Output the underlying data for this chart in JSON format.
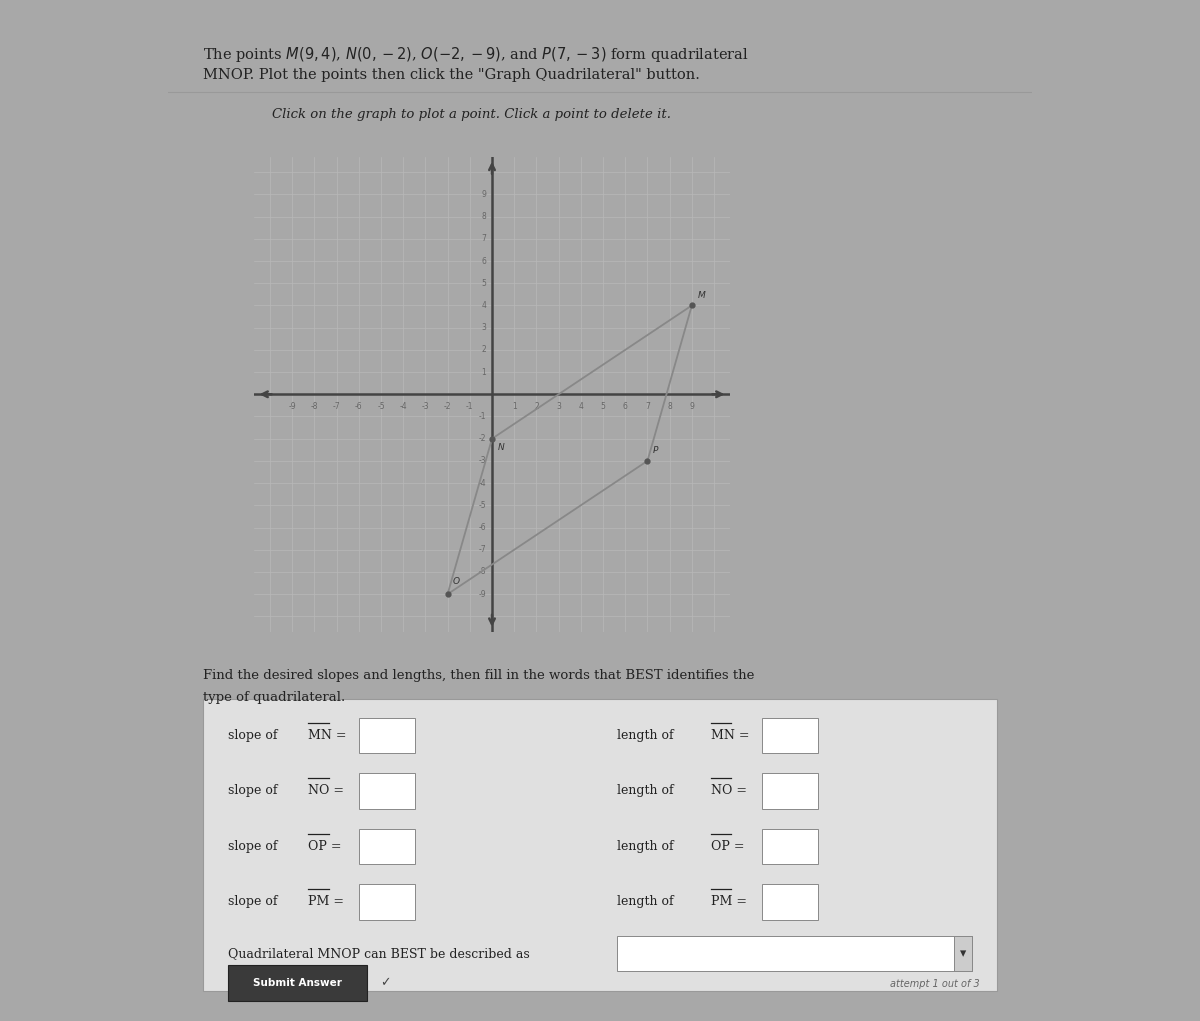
{
  "points": {
    "M": [
      9,
      4
    ],
    "N": [
      0,
      -2
    ],
    "O": [
      -2,
      -9
    ],
    "P": [
      7,
      -3
    ]
  },
  "axis_range": [
    -10,
    10
  ],
  "page_bg": "#a8a8a8",
  "panel_bg": "#d8d8d8",
  "graph_bg": "#d0d0d0",
  "grid_color": "#b8b8b8",
  "axis_color": "#444444",
  "quad_color": "#888888",
  "point_color": "#555555",
  "text_color": "#222222",
  "title_line1": "The points $M(9, 4)$, $N(0, -2)$, $O(-2, -9)$, and $P(7, -3)$ form quadrilateral",
  "title_line2": "MNOP. Plot the points then click the \"Graph Quadrilateral\" button.",
  "instruction": "Click on the graph to plot a point. Click a point to delete it.",
  "find_line1": "Find the desired slopes and lengths, then fill in the words that BEST identifies the",
  "find_line2": "type of quadrilateral.",
  "slope_segs": [
    "MN",
    "NO",
    "OP",
    "PM"
  ],
  "length_segs": [
    "MN",
    "NO",
    "OP",
    "PM"
  ],
  "bottom_text": "Quadrilateral MNOP can BEST be described as",
  "submit_text": "Submit Answer",
  "attempt_text": "attempt 1 out of 3"
}
